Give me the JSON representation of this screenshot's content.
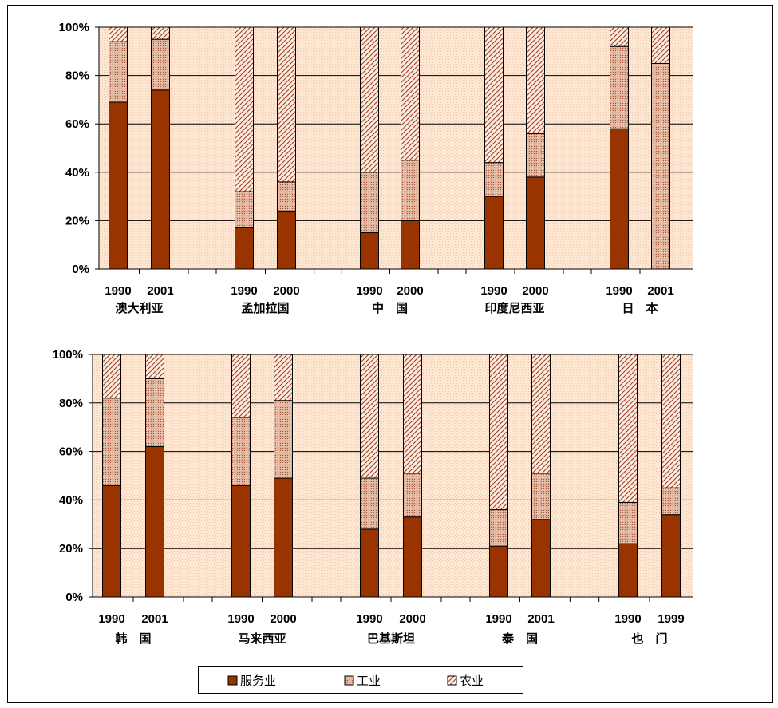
{
  "chart_data": [
    {
      "type": "bar",
      "stacked": true,
      "ylim": [
        0,
        100
      ],
      "yticks": [
        "0%",
        "20%",
        "40%",
        "60%",
        "80%",
        "100%"
      ],
      "groups": [
        {
          "label": "澳大利亚",
          "years": [
            "1990",
            "2001"
          ],
          "services": [
            69,
            74
          ],
          "industry": [
            25,
            21
          ],
          "agriculture": [
            6,
            5
          ]
        },
        {
          "label": "孟加拉国",
          "years": [
            "1990",
            "2000"
          ],
          "services": [
            17,
            24
          ],
          "industry": [
            15,
            12
          ],
          "agriculture": [
            68,
            64
          ]
        },
        {
          "label": "中　国",
          "years": [
            "1990",
            "2000"
          ],
          "services": [
            15,
            20
          ],
          "industry": [
            25,
            25
          ],
          "agriculture": [
            60,
            55
          ]
        },
        {
          "label": "印度尼西亚",
          "years": [
            "1990",
            "2000"
          ],
          "services": [
            30,
            38
          ],
          "industry": [
            14,
            18
          ],
          "agriculture": [
            56,
            44
          ]
        },
        {
          "label": "日　本",
          "years": [
            "1990",
            "2001"
          ],
          "services": [
            58,
            0
          ],
          "industry": [
            34,
            85
          ],
          "agriculture": [
            8,
            15
          ]
        }
      ]
    },
    {
      "type": "bar",
      "stacked": true,
      "ylim": [
        0,
        100
      ],
      "yticks": [
        "0%",
        "20%",
        "40%",
        "60%",
        "80%",
        "100%"
      ],
      "groups": [
        {
          "label": "韩　国",
          "years": [
            "1990",
            "2001"
          ],
          "services": [
            46,
            62
          ],
          "industry": [
            36,
            28
          ],
          "agriculture": [
            18,
            10
          ]
        },
        {
          "label": "马来西亚",
          "years": [
            "1990",
            "2000"
          ],
          "services": [
            46,
            49
          ],
          "industry": [
            28,
            32
          ],
          "agriculture": [
            26,
            19
          ]
        },
        {
          "label": "巴基斯坦",
          "years": [
            "1990",
            "2000"
          ],
          "services": [
            28,
            33
          ],
          "industry": [
            21,
            18
          ],
          "agriculture": [
            51,
            49
          ]
        },
        {
          "label": "泰　国",
          "years": [
            "1990",
            "2001"
          ],
          "services": [
            21,
            32
          ],
          "industry": [
            15,
            19
          ],
          "agriculture": [
            64,
            49
          ]
        },
        {
          "label": "也　门",
          "years": [
            "1990",
            "1999"
          ],
          "services": [
            22,
            34
          ],
          "industry": [
            17,
            11
          ],
          "agriculture": [
            61,
            55
          ]
        }
      ]
    }
  ],
  "legend": {
    "placement": "bottom",
    "items": [
      {
        "label": "服务业",
        "key": "services"
      },
      {
        "label": "工业",
        "key": "industry"
      },
      {
        "label": "农业",
        "key": "agriculture"
      }
    ]
  },
  "colors": {
    "services": "#993300",
    "industry": "#d9a58a",
    "agriculture": "#fbe7da",
    "plot_bg": "#fde6d2",
    "hatch": "#a04020"
  }
}
